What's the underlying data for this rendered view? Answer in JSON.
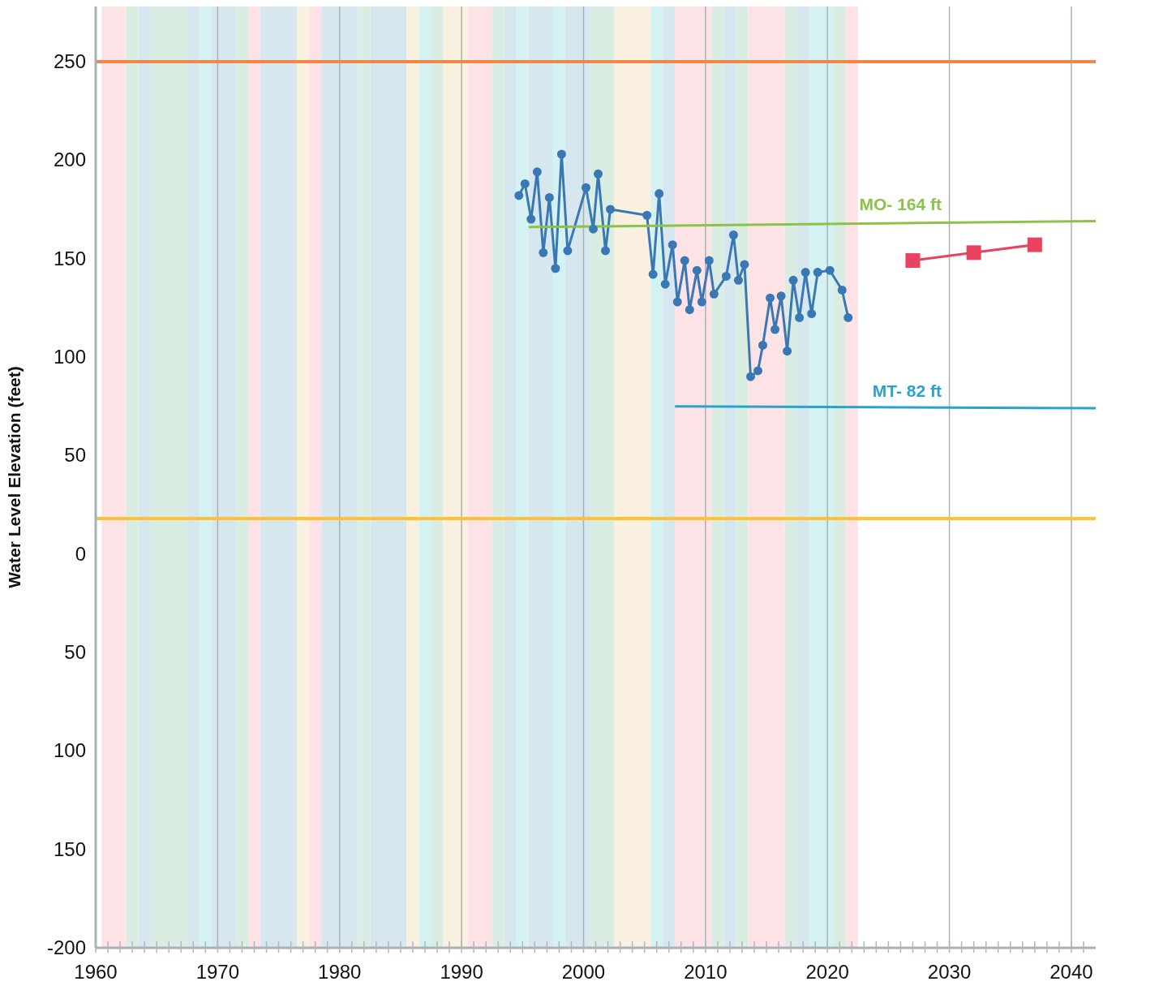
{
  "chart_data": {
    "type": "line",
    "ylabel": "Water Level Elevation (feet)",
    "xlim": [
      1960,
      2042
    ],
    "xticks": [
      1960,
      {
        "value": 1961,
        "label": null
      },
      {
        "value": 1962,
        "label": null
      },
      {
        "value": 1963,
        "label": null
      },
      {
        "value": 1964,
        "label": null
      },
      {
        "value": 1965,
        "label": null
      },
      {
        "value": 1966,
        "label": null
      },
      {
        "value": 1967,
        "label": null
      },
      {
        "value": 1968,
        "label": null
      },
      {
        "value": 1969,
        "label": null
      },
      1970,
      {
        "value": 1971,
        "label": null
      },
      {
        "value": 1972,
        "label": null
      },
      {
        "value": 1973,
        "label": null
      },
      {
        "value": 1974,
        "label": null
      },
      {
        "value": 1975,
        "label": null
      },
      {
        "value": 1976,
        "label": null
      },
      {
        "value": 1977,
        "label": null
      },
      {
        "value": 1978,
        "label": null
      },
      {
        "value": 1979,
        "label": null
      },
      1980,
      {
        "value": 1981,
        "label": null
      },
      {
        "value": 1982,
        "label": null
      },
      {
        "value": 1983,
        "label": null
      },
      {
        "value": 1984,
        "label": null
      },
      {
        "value": 1985,
        "label": null
      },
      {
        "value": 1986,
        "label": null
      },
      {
        "value": 1987,
        "label": null
      },
      {
        "value": 1988,
        "label": null
      },
      {
        "value": 1989,
        "label": null
      },
      1990,
      {
        "value": 1991,
        "label": null
      },
      {
        "value": 1992,
        "label": null
      },
      {
        "value": 1993,
        "label": null
      },
      {
        "value": 1994,
        "label": null
      },
      {
        "value": 1995,
        "label": null
      },
      {
        "value": 1996,
        "label": null
      },
      {
        "value": 1997,
        "label": null
      },
      {
        "value": 1998,
        "label": null
      },
      {
        "value": 1999,
        "label": null
      },
      2000,
      {
        "value": 2001,
        "label": null
      },
      {
        "value": 2002,
        "label": null
      },
      {
        "value": 2003,
        "label": null
      },
      {
        "value": 2004,
        "label": null
      },
      {
        "value": 2005,
        "label": null
      },
      {
        "value": 2006,
        "label": null
      },
      {
        "value": 2007,
        "label": null
      },
      {
        "value": 2008,
        "label": null
      },
      {
        "value": 2009,
        "label": null
      },
      2010,
      {
        "value": 2011,
        "label": null
      },
      {
        "value": 2012,
        "label": null
      },
      {
        "value": 2013,
        "label": null
      },
      {
        "value": 2014,
        "label": null
      },
      {
        "value": 2015,
        "label": null
      },
      {
        "value": 2016,
        "label": null
      },
      {
        "value": 2017,
        "label": null
      },
      {
        "value": 2018,
        "label": null
      },
      {
        "value": 2019,
        "label": null
      },
      2020,
      {
        "value": 2021,
        "label": null
      },
      {
        "value": 2022,
        "label": null
      },
      {
        "value": 2023,
        "label": null
      },
      {
        "value": 2024,
        "label": null
      },
      {
        "value": 2025,
        "label": null
      },
      {
        "value": 2026,
        "label": null
      },
      {
        "value": 2027,
        "label": null
      },
      {
        "value": 2028,
        "label": null
      },
      {
        "value": 2029,
        "label": null
      },
      2030,
      {
        "value": 2031,
        "label": null
      },
      {
        "value": 2032,
        "label": null
      },
      {
        "value": 2033,
        "label": null
      },
      {
        "value": 2034,
        "label": null
      },
      {
        "value": 2035,
        "label": null
      },
      {
        "value": 2036,
        "label": null
      },
      {
        "value": 2037,
        "label": null
      },
      {
        "value": 2038,
        "label": null
      },
      {
        "value": 2039,
        "label": null
      },
      2040,
      {
        "value": 2041,
        "label": null
      }
    ],
    "ylim": [
      -200,
      278
    ],
    "yticks": [
      -200,
      {
        "value": -150,
        "label": "150"
      },
      {
        "value": -100,
        "label": "100"
      },
      {
        "value": -50,
        "label": "50"
      },
      0,
      50,
      100,
      150,
      200,
      250
    ],
    "grid": "x",
    "line_style": "solid",
    "series": [
      {
        "color": "#3a78b5",
        "marker": "circle",
        "x": [
          1994.7,
          1995.2,
          1995.7,
          1996.2,
          1996.7,
          1997.2,
          1997.7,
          1998.2,
          1998.7,
          2000.2,
          2000.8,
          2001.2,
          2001.8,
          2002.2,
          2005.2,
          2005.7,
          2006.2,
          2006.7,
          2007.3,
          2007.7,
          2008.3,
          2008.7,
          2009.3,
          2009.7,
          2010.3,
          2010.7,
          2011.7,
          2012.3,
          2012.7,
          2013.2,
          2013.7,
          2014.3,
          2014.7,
          2015.3,
          2015.7,
          2016.2,
          2016.7,
          2017.2,
          2017.7,
          2018.2,
          2018.7,
          2019.2,
          2020.2,
          2021.2,
          2021.7
        ],
        "values": [
          182,
          188,
          170,
          194,
          153,
          181,
          145,
          203,
          154,
          186,
          165,
          193,
          154,
          175,
          172,
          142,
          183,
          137,
          157,
          128,
          149,
          124,
          144,
          128,
          149,
          132,
          141,
          162,
          139,
          147,
          90,
          93,
          106,
          130,
          114,
          131,
          103,
          139,
          120,
          143,
          122,
          143,
          144,
          134,
          120
        ]
      },
      {
        "color": "#e8435f",
        "marker": "square",
        "x": [
          2027,
          2032,
          2037
        ],
        "values": [
          149,
          153,
          157
        ]
      },
      {
        "name": "MO-  164 ft",
        "color": "#8bc34a",
        "marker": "none",
        "x": [
          1995.5,
          2042
        ],
        "values": [
          166,
          169
        ]
      },
      {
        "name": "MT-  82 ft",
        "color": "#29a3cc",
        "marker": "none",
        "x": [
          2007.5,
          2042
        ],
        "values": [
          75,
          74
        ]
      }
    ],
    "ref_lines": [
      {
        "axis": "y",
        "value": 250,
        "color": "#f0874a"
      },
      {
        "axis": "y",
        "value": 18,
        "color": "#fcc232"
      }
    ],
    "bands": [
      {
        "axis": "x",
        "from": 1960.5,
        "to": 1962.5,
        "color": "#fde3e6"
      },
      {
        "axis": "x",
        "from": 1962.5,
        "to": 1963.5,
        "color": "#d9ede3"
      },
      {
        "axis": "x",
        "from": 1963.5,
        "to": 1964.5,
        "color": "#d7e7ef"
      },
      {
        "axis": "x",
        "from": 1964.5,
        "to": 1967.5,
        "color": "#d9ede3"
      },
      {
        "axis": "x",
        "from": 1967.5,
        "to": 1968.5,
        "color": "#d7e7ef"
      },
      {
        "axis": "x",
        "from": 1968.5,
        "to": 1969.5,
        "color": "#d5f2f3"
      },
      {
        "axis": "x",
        "from": 1969.5,
        "to": 1971.5,
        "color": "#d7e7ef"
      },
      {
        "axis": "x",
        "from": 1971.5,
        "to": 1972.5,
        "color": "#d9ede3"
      },
      {
        "axis": "x",
        "from": 1972.5,
        "to": 1973.5,
        "color": "#fde3e6"
      },
      {
        "axis": "x",
        "from": 1973.5,
        "to": 1976.5,
        "color": "#d7e7ef"
      },
      {
        "axis": "x",
        "from": 1976.5,
        "to": 1977.5,
        "color": "#faf0df"
      },
      {
        "axis": "x",
        "from": 1977.5,
        "to": 1978.5,
        "color": "#fde3e6"
      },
      {
        "axis": "x",
        "from": 1978.5,
        "to": 1981.5,
        "color": "#d7e7ef"
      },
      {
        "axis": "x",
        "from": 1981.5,
        "to": 1982.5,
        "color": "#d9ede3"
      },
      {
        "axis": "x",
        "from": 1982.5,
        "to": 1985.5,
        "color": "#d7e7ef"
      },
      {
        "axis": "x",
        "from": 1985.5,
        "to": 1986.5,
        "color": "#faf0df"
      },
      {
        "axis": "x",
        "from": 1986.5,
        "to": 1987.5,
        "color": "#d5f2f3"
      },
      {
        "axis": "x",
        "from": 1987.5,
        "to": 1988.5,
        "color": "#d9ede3"
      },
      {
        "axis": "x",
        "from": 1988.5,
        "to": 1990.5,
        "color": "#faf0df"
      },
      {
        "axis": "x",
        "from": 1990.5,
        "to": 1992.5,
        "color": "#fde3e6"
      },
      {
        "axis": "x",
        "from": 1992.5,
        "to": 1993.5,
        "color": "#d9ede3"
      },
      {
        "axis": "x",
        "from": 1993.5,
        "to": 1994.5,
        "color": "#d7e7ef"
      },
      {
        "axis": "x",
        "from": 1994.5,
        "to": 1995.5,
        "color": "#d5f2f3"
      },
      {
        "axis": "x",
        "from": 1995.5,
        "to": 1997.5,
        "color": "#d7e7ef"
      },
      {
        "axis": "x",
        "from": 1997.5,
        "to": 1998.5,
        "color": "#d5f2f3"
      },
      {
        "axis": "x",
        "from": 1998.5,
        "to": 2000.5,
        "color": "#d7e7ef"
      },
      {
        "axis": "x",
        "from": 2000.5,
        "to": 2002.5,
        "color": "#d9ede3"
      },
      {
        "axis": "x",
        "from": 2002.5,
        "to": 2005.5,
        "color": "#faf0df"
      },
      {
        "axis": "x",
        "from": 2005.5,
        "to": 2006.5,
        "color": "#d5f2f3"
      },
      {
        "axis": "x",
        "from": 2006.5,
        "to": 2007.5,
        "color": "#d7e7ef"
      },
      {
        "axis": "x",
        "from": 2007.5,
        "to": 2010.5,
        "color": "#fde3e6"
      },
      {
        "axis": "x",
        "from": 2010.5,
        "to": 2011.5,
        "color": "#d9ede3"
      },
      {
        "axis": "x",
        "from": 2011.5,
        "to": 2012.5,
        "color": "#d7e7ef"
      },
      {
        "axis": "x",
        "from": 2012.5,
        "to": 2013.5,
        "color": "#d9ede3"
      },
      {
        "axis": "x",
        "from": 2013.5,
        "to": 2016.5,
        "color": "#fde3e6"
      },
      {
        "axis": "x",
        "from": 2016.5,
        "to": 2017.5,
        "color": "#d9ede3"
      },
      {
        "axis": "x",
        "from": 2017.5,
        "to": 2018.5,
        "color": "#d7e7ef"
      },
      {
        "axis": "x",
        "from": 2018.5,
        "to": 2020.5,
        "color": "#d5f2f3"
      },
      {
        "axis": "x",
        "from": 2020.5,
        "to": 2021.5,
        "color": "#d9ede3"
      },
      {
        "axis": "x",
        "from": 2021.5,
        "to": 2022.5,
        "color": "#fde3e6"
      }
    ]
  }
}
